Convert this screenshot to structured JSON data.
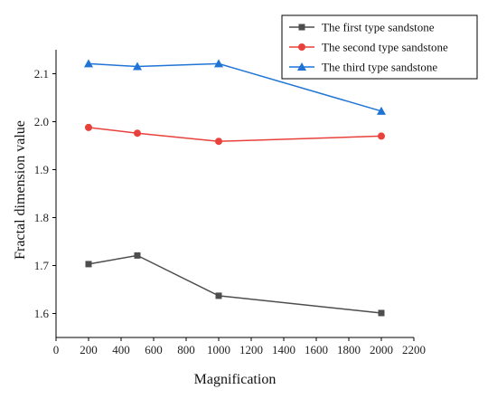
{
  "chart_data": {
    "type": "line",
    "title": "",
    "xlabel": "Magnification",
    "ylabel": "Fractal dimension value",
    "xlim": [
      0,
      2200
    ],
    "ylim": [
      1.55,
      2.15
    ],
    "x_ticks": [
      0,
      200,
      400,
      600,
      800,
      1000,
      1200,
      1400,
      1600,
      1800,
      2000,
      2200
    ],
    "y_ticks": [
      1.6,
      1.7,
      1.8,
      1.9,
      2.0,
      2.1
    ],
    "y_tick_labels": [
      "1.6",
      "1.7",
      "1.8",
      "1.9",
      "2.0",
      "2.1"
    ],
    "grid": false,
    "legend_position": "top-right",
    "x": [
      200,
      500,
      1000,
      2000
    ],
    "series": [
      {
        "name": "The first type sandstone",
        "values": [
          1.703,
          1.721,
          1.637,
          1.601
        ],
        "color": "#4d4d4d",
        "marker": "square"
      },
      {
        "name": "The second type sandstone",
        "values": [
          1.988,
          1.976,
          1.959,
          1.97
        ],
        "color": "#e8413c",
        "marker": "circle"
      },
      {
        "name": "The third type sandstone",
        "values": [
          2.121,
          2.115,
          2.121,
          2.022
        ],
        "color": "#1f74d6",
        "marker": "triangle"
      }
    ]
  }
}
